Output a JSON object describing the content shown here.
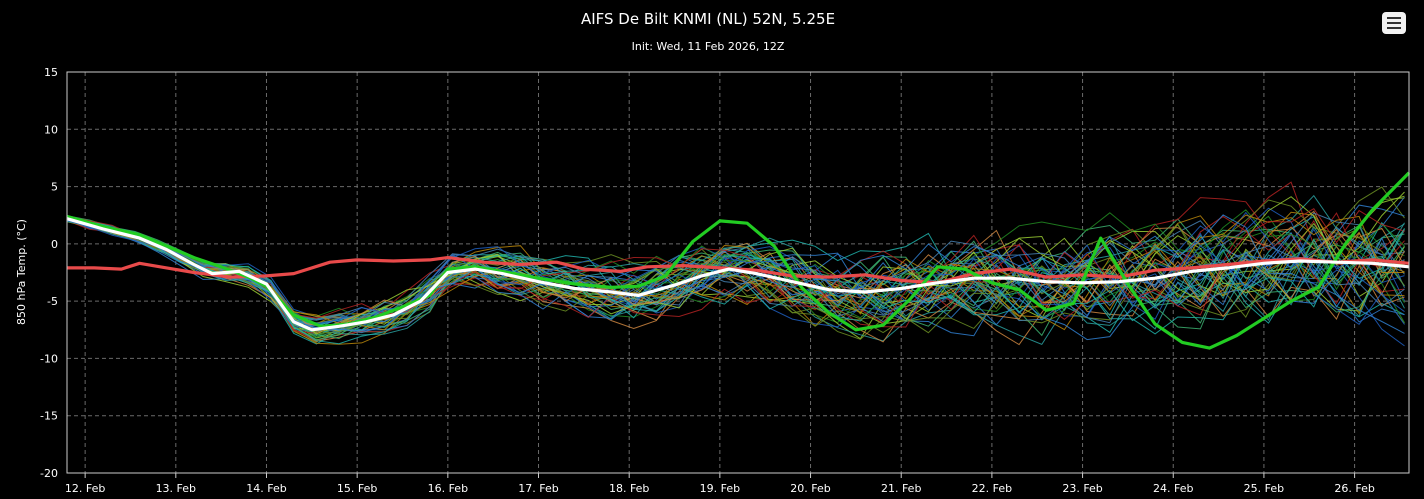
{
  "chart_data": {
    "type": "line",
    "title": "AIFS De Bilt KNMI (NL) 52N, 5.25E",
    "subtitle": "Init: Wed, 11 Feb 2026, 12Z",
    "xlabel": "",
    "ylabel": "850 hPa Temp. (°C)",
    "ylim": [
      -20,
      15
    ],
    "xlim": [
      11.8,
      26.6
    ],
    "y_ticks": [
      15,
      10,
      5,
      0,
      -5,
      -10,
      -15,
      -20
    ],
    "x_tick_values": [
      12,
      13,
      14,
      15,
      16,
      17,
      18,
      19,
      20,
      21,
      22,
      23,
      24,
      25,
      26
    ],
    "x_tick_labels": [
      "12. Feb",
      "13. Feb",
      "14. Feb",
      "15. Feb",
      "16. Feb",
      "17. Feb",
      "18. Feb",
      "19. Feb",
      "20. Feb",
      "21. Feb",
      "22. Feb",
      "23. Feb",
      "24. Feb",
      "25. Feb",
      "26. Feb"
    ],
    "grid": true,
    "member_count": 50,
    "member_colors": [
      "#1f5fbf",
      "#2f7fd0",
      "#2aa0a0",
      "#3cb371",
      "#228b22",
      "#6b8e23",
      "#9acd32",
      "#b8860b",
      "#cd853f",
      "#b22222",
      "#4682b4",
      "#20b2aa"
    ],
    "highlight_series": [
      {
        "color": "#ffffff",
        "values": [
          [
            11.8,
            2.2
          ],
          [
            12.2,
            1.3
          ],
          [
            12.6,
            0.5
          ],
          [
            12.9,
            -0.5
          ],
          [
            13.2,
            -1.8
          ],
          [
            13.4,
            -2.6
          ],
          [
            13.7,
            -2.4
          ],
          [
            14.0,
            -3.5
          ],
          [
            14.3,
            -6.8
          ],
          [
            14.5,
            -7.5
          ],
          [
            14.8,
            -7.2
          ],
          [
            15.1,
            -6.8
          ],
          [
            15.4,
            -6.2
          ],
          [
            15.7,
            -5.0
          ],
          [
            16.0,
            -2.5
          ],
          [
            16.3,
            -2.2
          ],
          [
            16.6,
            -2.6
          ],
          [
            17.0,
            -3.3
          ],
          [
            17.4,
            -3.9
          ],
          [
            17.8,
            -4.2
          ],
          [
            18.1,
            -4.5
          ],
          [
            18.5,
            -3.6
          ],
          [
            18.8,
            -2.8
          ],
          [
            19.1,
            -2.2
          ],
          [
            19.4,
            -2.6
          ],
          [
            19.8,
            -3.3
          ],
          [
            20.2,
            -4.0
          ],
          [
            20.6,
            -4.2
          ],
          [
            21.0,
            -3.9
          ],
          [
            21.4,
            -3.4
          ],
          [
            21.8,
            -3.0
          ],
          [
            22.2,
            -3.0
          ],
          [
            22.6,
            -3.3
          ],
          [
            23.0,
            -3.4
          ],
          [
            23.4,
            -3.3
          ],
          [
            23.8,
            -3.0
          ],
          [
            24.2,
            -2.4
          ],
          [
            24.6,
            -2.1
          ],
          [
            25.0,
            -1.7
          ],
          [
            25.4,
            -1.5
          ],
          [
            25.8,
            -1.6
          ],
          [
            26.2,
            -1.7
          ],
          [
            26.6,
            -2.0
          ]
        ]
      },
      {
        "color": "#e84a4a",
        "values": [
          [
            11.8,
            -2.1
          ],
          [
            12.1,
            -2.1
          ],
          [
            12.4,
            -2.2
          ],
          [
            12.6,
            -1.7
          ],
          [
            12.9,
            -2.1
          ],
          [
            13.2,
            -2.5
          ],
          [
            13.6,
            -2.9
          ],
          [
            14.0,
            -2.8
          ],
          [
            14.3,
            -2.6
          ],
          [
            14.7,
            -1.6
          ],
          [
            15.0,
            -1.4
          ],
          [
            15.4,
            -1.5
          ],
          [
            15.8,
            -1.4
          ],
          [
            16.0,
            -1.2
          ],
          [
            16.4,
            -1.6
          ],
          [
            16.8,
            -1.8
          ],
          [
            17.2,
            -1.6
          ],
          [
            17.5,
            -2.2
          ],
          [
            17.9,
            -2.4
          ],
          [
            18.2,
            -2.0
          ],
          [
            18.6,
            -1.9
          ],
          [
            19.0,
            -2.1
          ],
          [
            19.4,
            -2.3
          ],
          [
            19.8,
            -2.8
          ],
          [
            20.2,
            -2.9
          ],
          [
            20.6,
            -2.7
          ],
          [
            21.0,
            -3.2
          ],
          [
            21.4,
            -3.4
          ],
          [
            21.8,
            -2.6
          ],
          [
            22.2,
            -2.2
          ],
          [
            22.6,
            -2.9
          ],
          [
            23.0,
            -2.7
          ],
          [
            23.4,
            -2.9
          ],
          [
            23.8,
            -2.3
          ],
          [
            24.2,
            -2.1
          ],
          [
            24.6,
            -1.8
          ],
          [
            25.0,
            -1.5
          ],
          [
            25.4,
            -1.3
          ],
          [
            25.8,
            -1.6
          ],
          [
            26.2,
            -1.4
          ],
          [
            26.6,
            -1.7
          ]
        ]
      },
      {
        "color": "#22cc22",
        "values": [
          [
            11.8,
            2.4
          ],
          [
            12.2,
            1.5
          ],
          [
            12.6,
            0.8
          ],
          [
            12.9,
            -0.2
          ],
          [
            13.2,
            -1.2
          ],
          [
            13.5,
            -2.0
          ],
          [
            13.8,
            -2.9
          ],
          [
            14.0,
            -3.7
          ],
          [
            14.3,
            -6.2
          ],
          [
            14.6,
            -7.2
          ],
          [
            14.9,
            -7.0
          ],
          [
            15.2,
            -6.4
          ],
          [
            15.5,
            -5.5
          ],
          [
            15.8,
            -4.5
          ],
          [
            16.0,
            -2.2
          ],
          [
            16.3,
            -2.0
          ],
          [
            16.6,
            -2.4
          ],
          [
            17.0,
            -3.0
          ],
          [
            17.4,
            -3.5
          ],
          [
            17.8,
            -3.8
          ],
          [
            18.1,
            -3.7
          ],
          [
            18.4,
            -2.8
          ],
          [
            18.7,
            0.2
          ],
          [
            19.0,
            2.0
          ],
          [
            19.3,
            1.8
          ],
          [
            19.6,
            -0.2
          ],
          [
            19.9,
            -3.8
          ],
          [
            20.2,
            -6.0
          ],
          [
            20.5,
            -7.5
          ],
          [
            20.8,
            -7.1
          ],
          [
            21.1,
            -4.8
          ],
          [
            21.4,
            -2.0
          ],
          [
            21.7,
            -2.2
          ],
          [
            22.0,
            -3.4
          ],
          [
            22.3,
            -4.0
          ],
          [
            22.6,
            -5.8
          ],
          [
            22.9,
            -5.2
          ],
          [
            23.2,
            0.5
          ],
          [
            23.5,
            -3.5
          ],
          [
            23.8,
            -7.0
          ],
          [
            24.1,
            -8.6
          ],
          [
            24.4,
            -9.1
          ],
          [
            24.7,
            -8.0
          ],
          [
            25.0,
            -6.5
          ],
          [
            25.3,
            -5.0
          ],
          [
            25.6,
            -3.8
          ],
          [
            25.9,
            0.0
          ],
          [
            26.2,
            3.0
          ],
          [
            26.6,
            6.2
          ]
        ]
      }
    ]
  },
  "toolbar": {
    "menu_icon": "hamburger-menu-icon"
  }
}
